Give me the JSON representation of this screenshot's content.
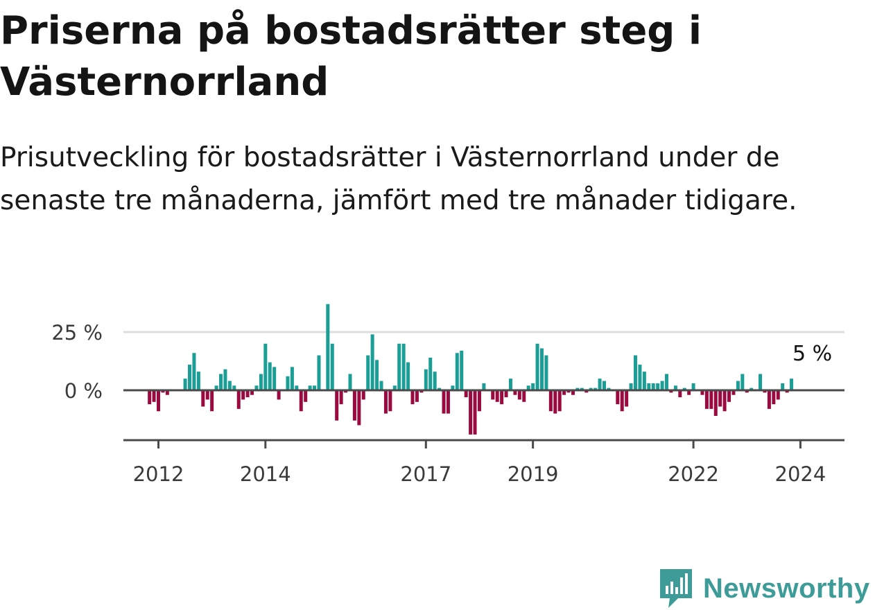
{
  "title": "Priserna på bostadsrätter steg i Västernorrland",
  "subtitle": "Prisutveckling för bostadsrätter i Västernorrland under de senaste tre månaderna, jämfört med tre månader tidigare.",
  "brand": {
    "name": "Newsworthy",
    "color": "#3d9c98",
    "icon": "newsworthy-logo-icon"
  },
  "colors": {
    "positive": "#1a9e96",
    "negative": "#9b0a3e",
    "zero_line": "#4a4a4a",
    "grid": "#dddddd",
    "axis": "#4a4a4a"
  },
  "chart_data": {
    "type": "bar",
    "title": "Priserna på bostadsrätter steg i Västernorrland",
    "subtitle": "Prisutveckling för bostadsrätter i Västernorrland under de senaste tre månaderna, jämfört med tre månader tidigare.",
    "xlabel": "",
    "ylabel": "",
    "x_start": "2011-11",
    "frequency": "monthly",
    "unit": "%",
    "ylim": [
      -22,
      40
    ],
    "y_ticks": [
      0,
      25
    ],
    "y_tick_labels": [
      "0 %",
      "25 %"
    ],
    "x_ticks": [
      2012,
      2014,
      2017,
      2019,
      2022,
      2024
    ],
    "grid": true,
    "legend": "none",
    "last_value_label": "5 %",
    "values": [
      -6,
      -5,
      -9,
      -1,
      -2,
      0,
      0,
      0,
      5,
      11,
      16,
      8,
      -7,
      -4,
      -9,
      2,
      7,
      9,
      4,
      2,
      -8,
      -4,
      -3,
      -2,
      2,
      7,
      20,
      12,
      10,
      -4,
      0,
      6,
      10,
      2,
      -9,
      -5,
      2,
      2,
      15,
      0,
      37,
      20,
      -13,
      -6,
      -1,
      7,
      -13,
      -15,
      -4,
      15,
      24,
      13,
      4,
      -10,
      -9,
      2,
      20,
      20,
      12,
      -6,
      -5,
      -1,
      9,
      14,
      8,
      1,
      -10,
      -10,
      2,
      16,
      17,
      -3,
      -19,
      -19,
      -9,
      3,
      0,
      -4,
      -5,
      -6,
      -3,
      5,
      -2,
      -4,
      -5,
      2,
      3,
      20,
      18,
      15,
      -9,
      -10,
      -9,
      -2,
      -1,
      -2,
      1,
      1,
      -1,
      1,
      1,
      5,
      4,
      1,
      0,
      -6,
      -9,
      -7,
      3,
      15,
      11,
      8,
      3,
      3,
      3,
      4,
      7,
      -1,
      2,
      -3,
      1,
      -2,
      3,
      0,
      -2,
      -8,
      -8,
      -11,
      -7,
      -9,
      -5,
      -2,
      4,
      7,
      -1,
      1,
      0,
      7,
      -1,
      -8,
      -6,
      -4,
      3,
      -1,
      5
    ]
  }
}
